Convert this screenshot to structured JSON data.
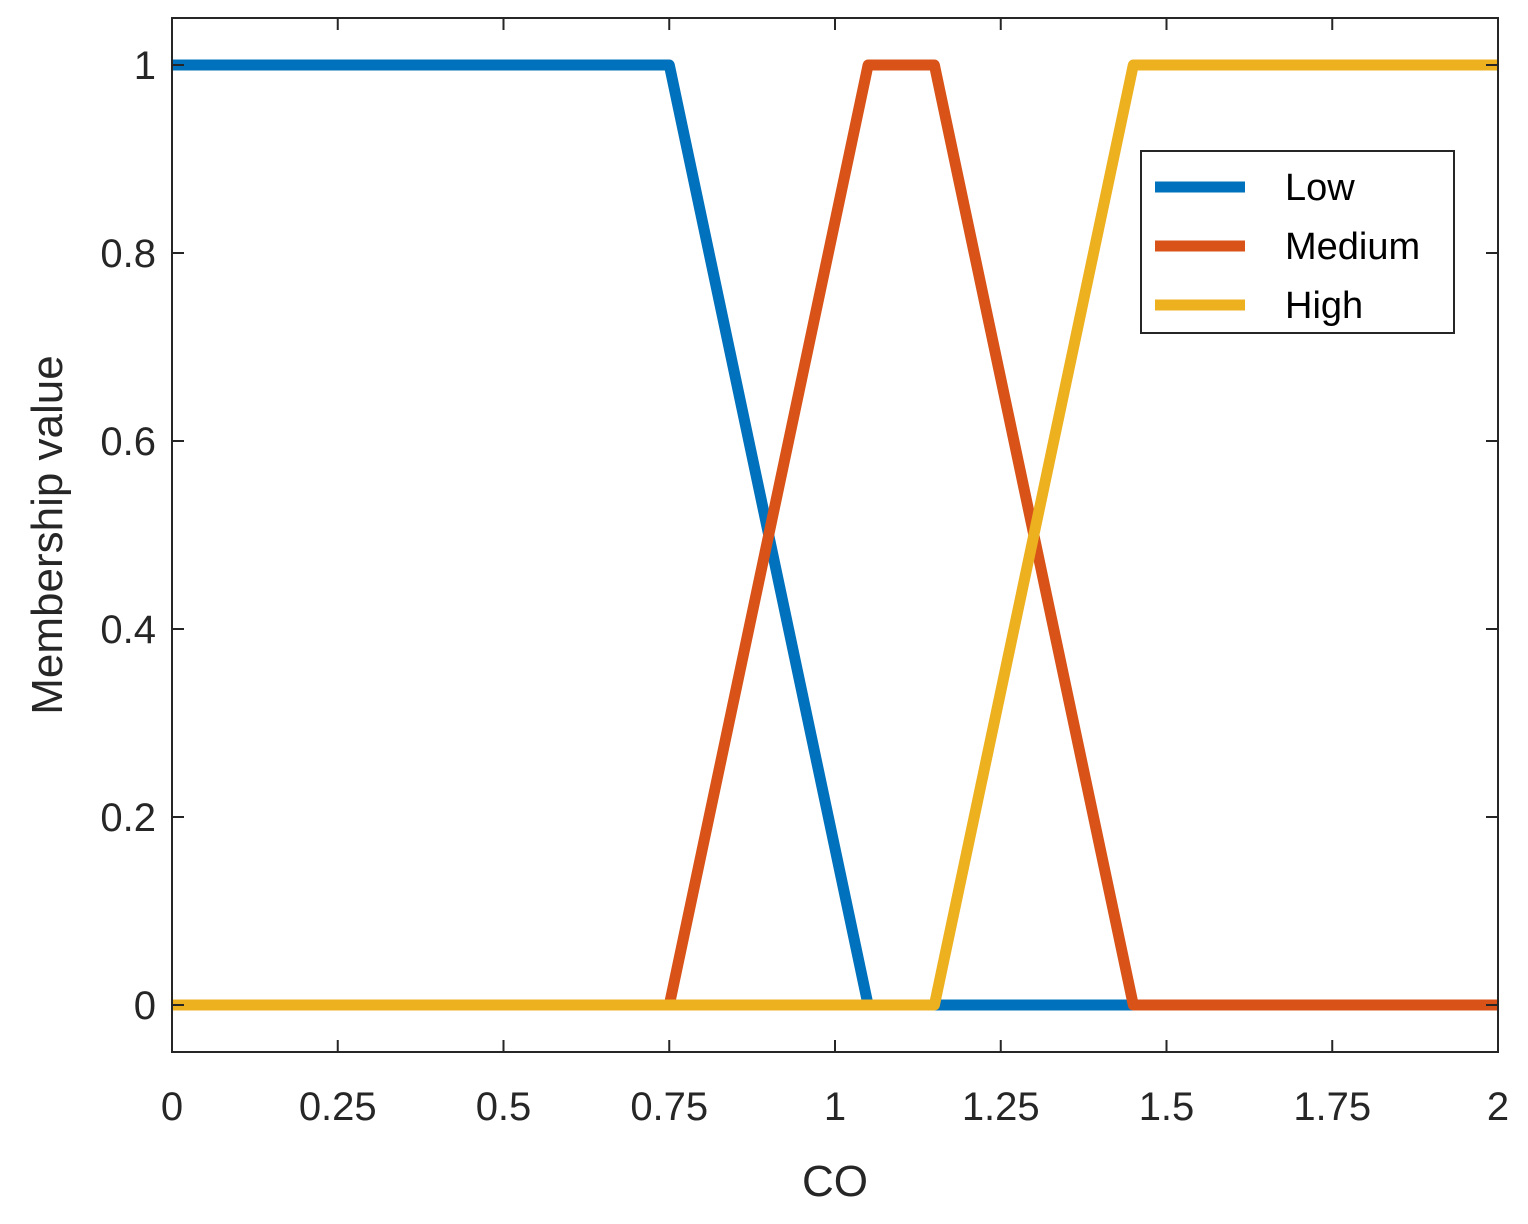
{
  "chart_data": {
    "type": "line",
    "title": "",
    "xlabel": "CO",
    "ylabel": "Membership value",
    "xlim": [
      0,
      2
    ],
    "ylim": [
      -0.05,
      1.05
    ],
    "x_ticks": [
      0,
      0.25,
      0.5,
      0.75,
      1,
      1.25,
      1.5,
      1.75,
      2
    ],
    "x_tick_labels": [
      "0",
      "0.25",
      "0.5",
      "0.75",
      "1",
      "1.25",
      "1.5",
      "1.75",
      "2"
    ],
    "y_ticks": [
      0,
      0.2,
      0.4,
      0.6,
      0.8,
      1
    ],
    "y_tick_labels": [
      "0",
      "0.2",
      "0.4",
      "0.6",
      "0.8",
      "1"
    ],
    "grid": false,
    "legend_position": "top-right",
    "series": [
      {
        "name": "Low",
        "color": "#0072BD",
        "x": [
          0,
          0.75,
          1.05,
          2
        ],
        "y": [
          1,
          1,
          0,
          0
        ]
      },
      {
        "name": "Medium",
        "color": "#D95319",
        "x": [
          0,
          0.75,
          1.05,
          1.15,
          1.45,
          2
        ],
        "y": [
          0,
          0,
          1,
          1,
          0,
          0
        ]
      },
      {
        "name": "High",
        "color": "#EDB120",
        "x": [
          0,
          1.15,
          1.45,
          2
        ],
        "y": [
          0,
          0,
          1,
          1
        ]
      }
    ]
  }
}
